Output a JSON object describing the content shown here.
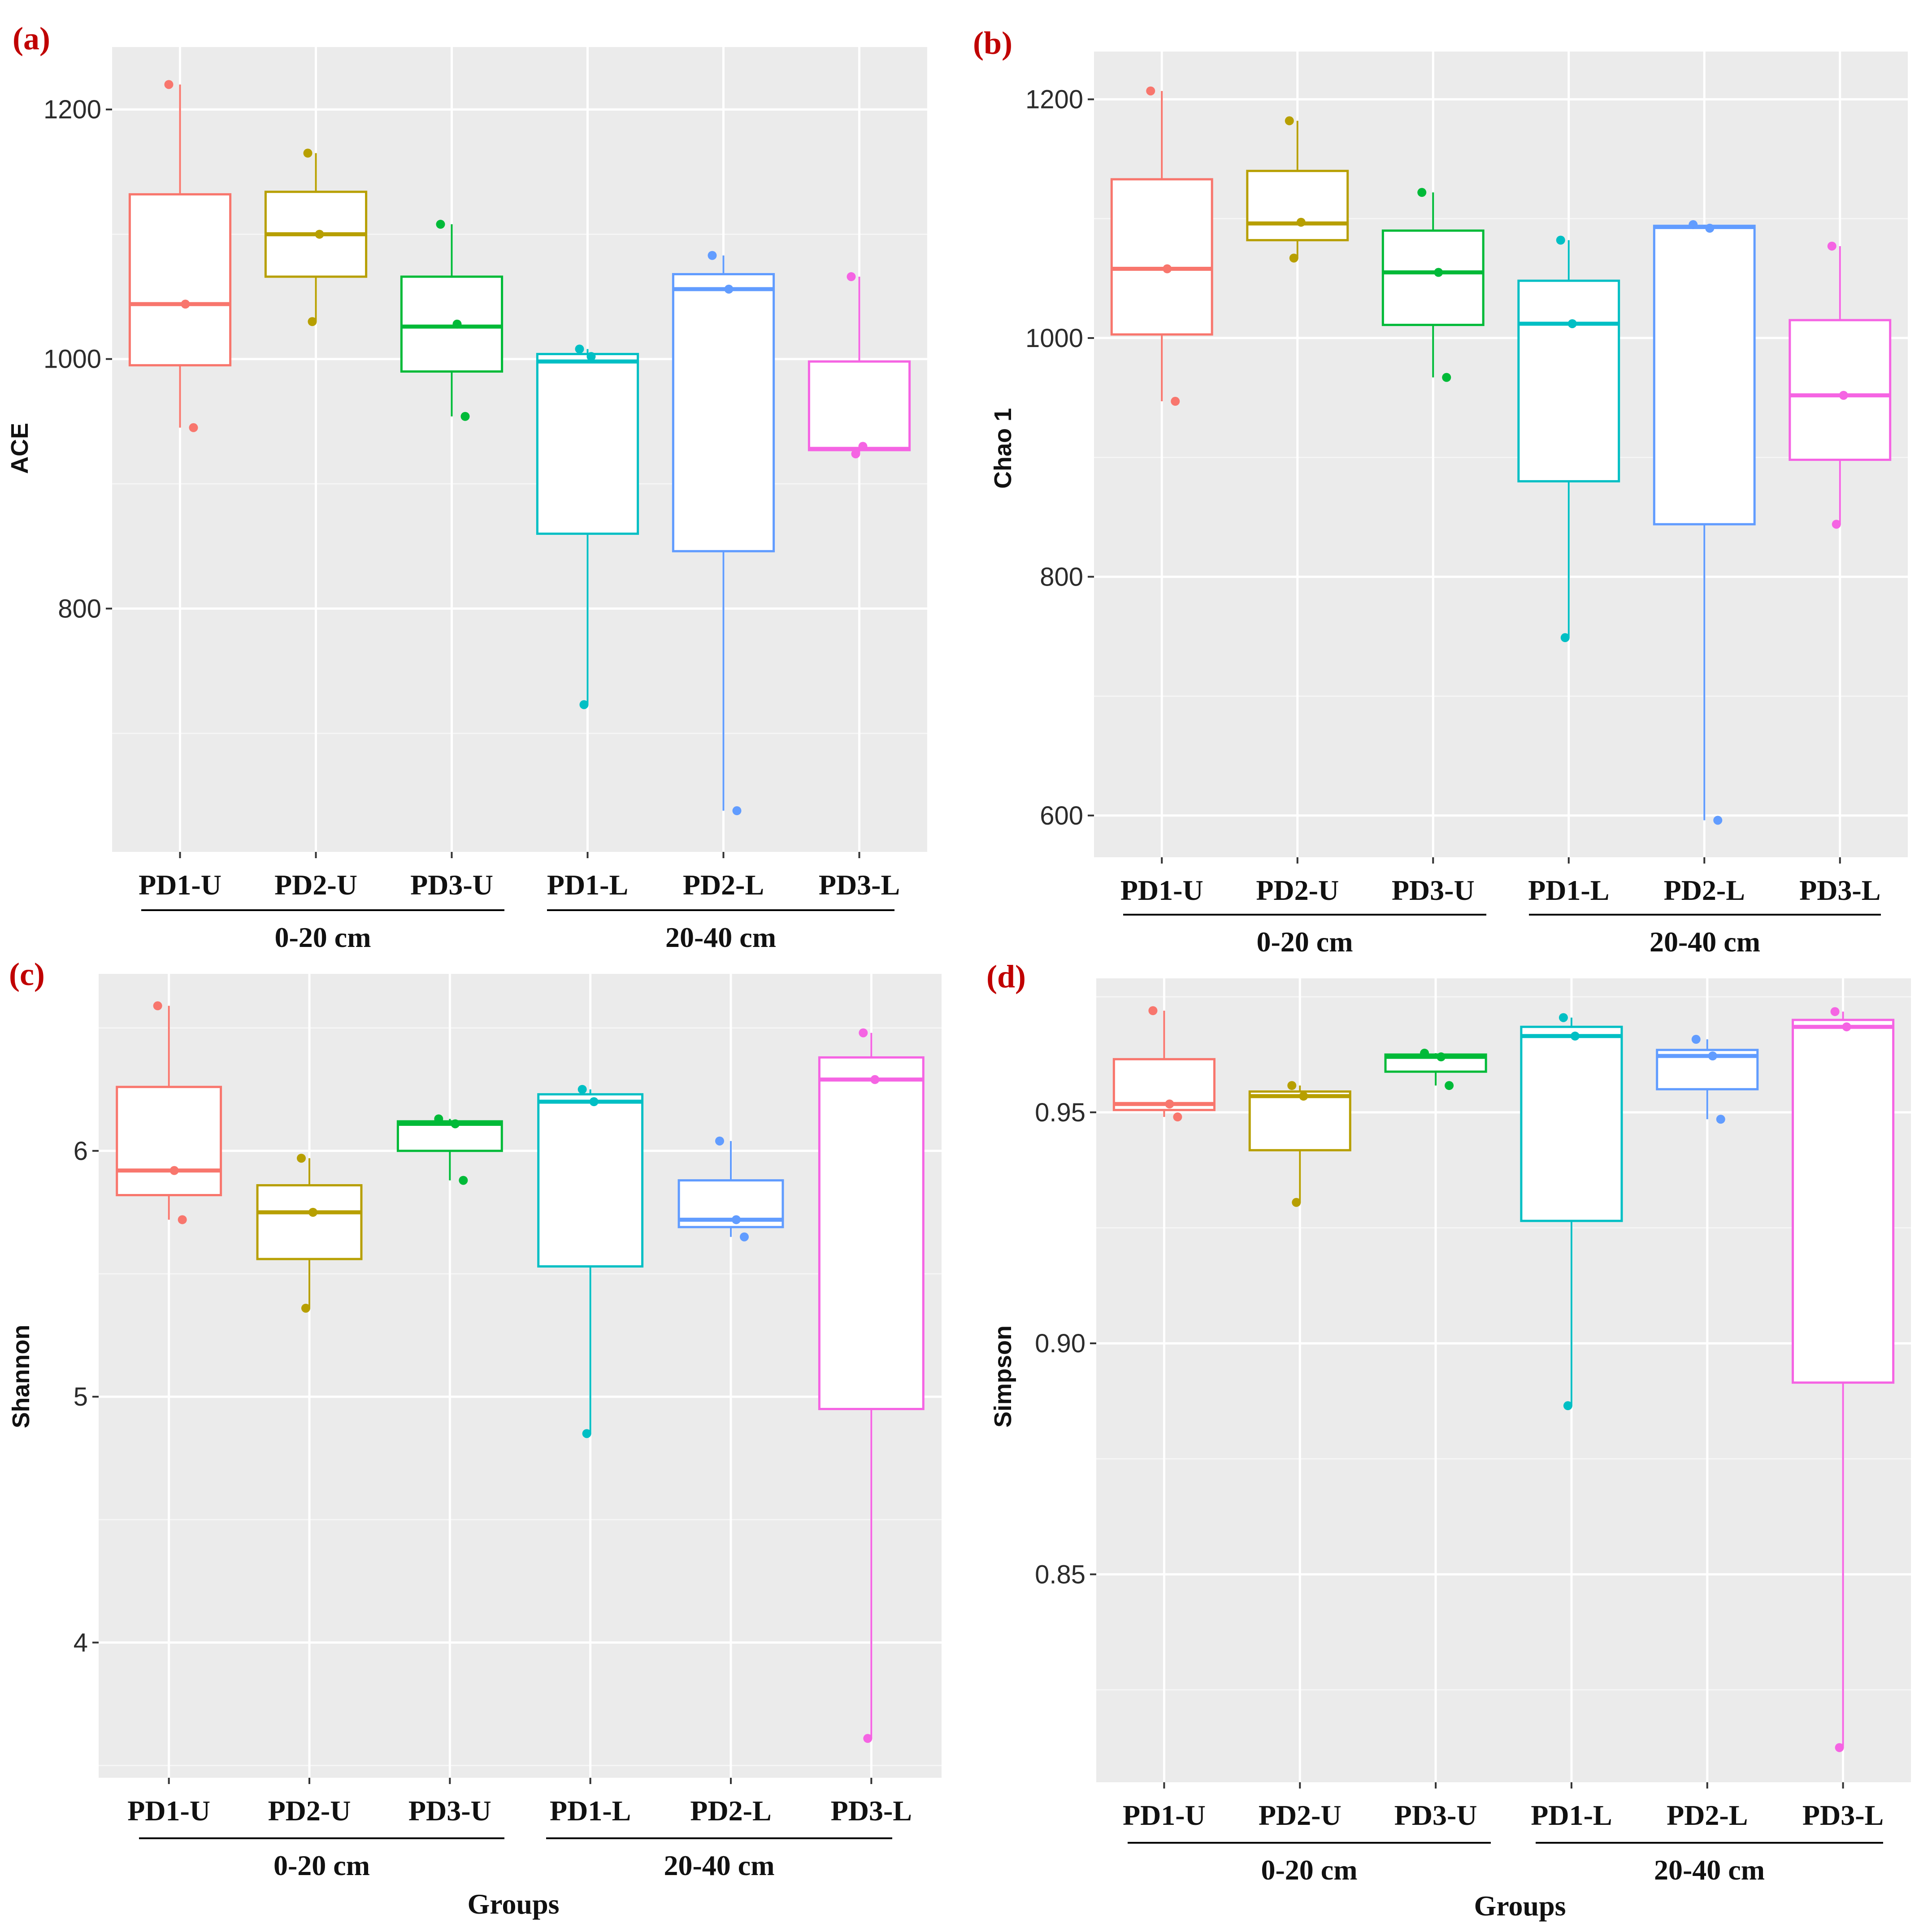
{
  "figure": {
    "x_title": "Groups",
    "group_labels": [
      "0-20 cm",
      "20-40 cm"
    ],
    "categories": [
      "PD1-U",
      "PD2-U",
      "PD3-U",
      "PD1-L",
      "PD2-L",
      "PD3-L"
    ],
    "colors": [
      "#F8766D",
      "#B79F00",
      "#00BA38",
      "#00BFC4",
      "#619CFF",
      "#F564E3"
    ]
  },
  "chart_data": [
    {
      "panel": "(a)",
      "type": "box",
      "ylabel": "ACE",
      "xlabel": "",
      "ylim": [
        605,
        1250
      ],
      "yticks": [
        800,
        1000,
        1200
      ],
      "categories": [
        "PD1-U",
        "PD2-U",
        "PD3-U",
        "PD1-L",
        "PD2-L",
        "PD3-L"
      ],
      "boxes": [
        {
          "q1": 995,
          "median": 1044,
          "q3": 1132,
          "whisker_low": 945,
          "whisker_high": 1220
        },
        {
          "q1": 1066,
          "median": 1100,
          "q3": 1134,
          "whisker_low": 1030,
          "whisker_high": 1165
        },
        {
          "q1": 990,
          "median": 1026,
          "q3": 1066,
          "whisker_low": 954,
          "whisker_high": 1108
        },
        {
          "q1": 860,
          "median": 998,
          "q3": 1004,
          "whisker_low": 723,
          "whisker_high": 1008
        },
        {
          "q1": 846,
          "median": 1056,
          "q3": 1068,
          "whisker_low": 638,
          "whisker_high": 1083
        },
        {
          "q1": 927,
          "median": 928,
          "q3": 998,
          "whisker_low": 924,
          "whisker_high": 1066
        }
      ],
      "points": [
        [
          1220,
          1044,
          945
        ],
        [
          1165,
          1100,
          1030
        ],
        [
          1108,
          1028,
          954
        ],
        [
          1008,
          1002,
          723
        ],
        [
          1083,
          1056,
          638
        ],
        [
          1066,
          930,
          924
        ]
      ]
    },
    {
      "panel": "(b)",
      "type": "box",
      "ylabel": "Chao 1",
      "xlabel": "",
      "ylim": [
        565,
        1240
      ],
      "yticks": [
        600,
        800,
        1000,
        1200
      ],
      "categories": [
        "PD1-U",
        "PD2-U",
        "PD3-U",
        "PD1-L",
        "PD2-L",
        "PD3-L"
      ],
      "boxes": [
        {
          "q1": 1003,
          "median": 1058,
          "q3": 1133,
          "whisker_low": 947,
          "whisker_high": 1207
        },
        {
          "q1": 1082,
          "median": 1096,
          "q3": 1140,
          "whisker_low": 1067,
          "whisker_high": 1182
        },
        {
          "q1": 1011,
          "median": 1055,
          "q3": 1090,
          "whisker_low": 967,
          "whisker_high": 1122
        },
        {
          "q1": 880,
          "median": 1012,
          "q3": 1048,
          "whisker_low": 749,
          "whisker_high": 1082
        },
        {
          "q1": 844,
          "median": 1093,
          "q3": 1094,
          "whisker_low": 596,
          "whisker_high": 1095
        },
        {
          "q1": 898,
          "median": 952,
          "q3": 1015,
          "whisker_low": 844,
          "whisker_high": 1077
        }
      ],
      "points": [
        [
          1207,
          1058,
          947
        ],
        [
          1182,
          1097,
          1067
        ],
        [
          1122,
          1055,
          967
        ],
        [
          1082,
          1012,
          749
        ],
        [
          1095,
          1092,
          596
        ],
        [
          1077,
          952,
          844
        ]
      ]
    },
    {
      "panel": "(c)",
      "type": "box",
      "ylabel": "Shannon",
      "xlabel": "Groups",
      "ylim": [
        3.45,
        6.72
      ],
      "yticks": [
        4,
        5,
        6
      ],
      "categories": [
        "PD1-U",
        "PD2-U",
        "PD3-U",
        "PD1-L",
        "PD2-L",
        "PD3-L"
      ],
      "boxes": [
        {
          "q1": 5.82,
          "median": 5.92,
          "q3": 6.26,
          "whisker_low": 5.72,
          "whisker_high": 6.59
        },
        {
          "q1": 5.56,
          "median": 5.75,
          "q3": 5.86,
          "whisker_low": 5.36,
          "whisker_high": 5.97
        },
        {
          "q1": 6.0,
          "median": 6.11,
          "q3": 6.12,
          "whisker_low": 5.88,
          "whisker_high": 6.13
        },
        {
          "q1": 5.53,
          "median": 6.2,
          "q3": 6.23,
          "whisker_low": 4.85,
          "whisker_high": 6.25
        },
        {
          "q1": 5.69,
          "median": 5.72,
          "q3": 5.88,
          "whisker_low": 5.65,
          "whisker_high": 6.04
        },
        {
          "q1": 4.95,
          "median": 6.29,
          "q3": 6.38,
          "whisker_low": 3.61,
          "whisker_high": 6.48
        }
      ],
      "points": [
        [
          6.59,
          5.92,
          5.72
        ],
        [
          5.97,
          5.75,
          5.36
        ],
        [
          6.13,
          6.11,
          5.88
        ],
        [
          6.25,
          6.2,
          4.85
        ],
        [
          6.04,
          5.72,
          5.65
        ],
        [
          6.48,
          6.29,
          3.61
        ]
      ]
    },
    {
      "panel": "(d)",
      "type": "box",
      "ylabel": "Simpson",
      "xlabel": "Groups",
      "ylim": [
        0.805,
        0.979
      ],
      "yticks": [
        0.85,
        0.9,
        0.95
      ],
      "ytick_labels": [
        "0.85",
        "0.90",
        "0.95"
      ],
      "categories": [
        "PD1-U",
        "PD2-U",
        "PD3-U",
        "PD1-L",
        "PD2-L",
        "PD3-L"
      ],
      "boxes": [
        {
          "q1": 0.9505,
          "median": 0.9518,
          "q3": 0.9615,
          "whisker_low": 0.949,
          "whisker_high": 0.972
        },
        {
          "q1": 0.9418,
          "median": 0.9535,
          "q3": 0.9545,
          "whisker_low": 0.9305,
          "whisker_high": 0.9558
        },
        {
          "q1": 0.9588,
          "median": 0.962,
          "q3": 0.9625,
          "whisker_low": 0.9558,
          "whisker_high": 0.9628
        },
        {
          "q1": 0.9265,
          "median": 0.9665,
          "q3": 0.9685,
          "whisker_low": 0.8865,
          "whisker_high": 0.9705
        },
        {
          "q1": 0.955,
          "median": 0.9622,
          "q3": 0.9635,
          "whisker_low": 0.9485,
          "whisker_high": 0.9658
        },
        {
          "q1": 0.8915,
          "median": 0.9685,
          "q3": 0.97,
          "whisker_low": 0.8125,
          "whisker_high": 0.9718
        }
      ],
      "points": [
        [
          0.972,
          0.9518,
          0.949
        ],
        [
          0.9558,
          0.9535,
          0.9305
        ],
        [
          0.9628,
          0.962,
          0.9558
        ],
        [
          0.9705,
          0.9665,
          0.8865
        ],
        [
          0.9658,
          0.9622,
          0.9485
        ],
        [
          0.9718,
          0.9685,
          0.8125
        ]
      ]
    }
  ]
}
